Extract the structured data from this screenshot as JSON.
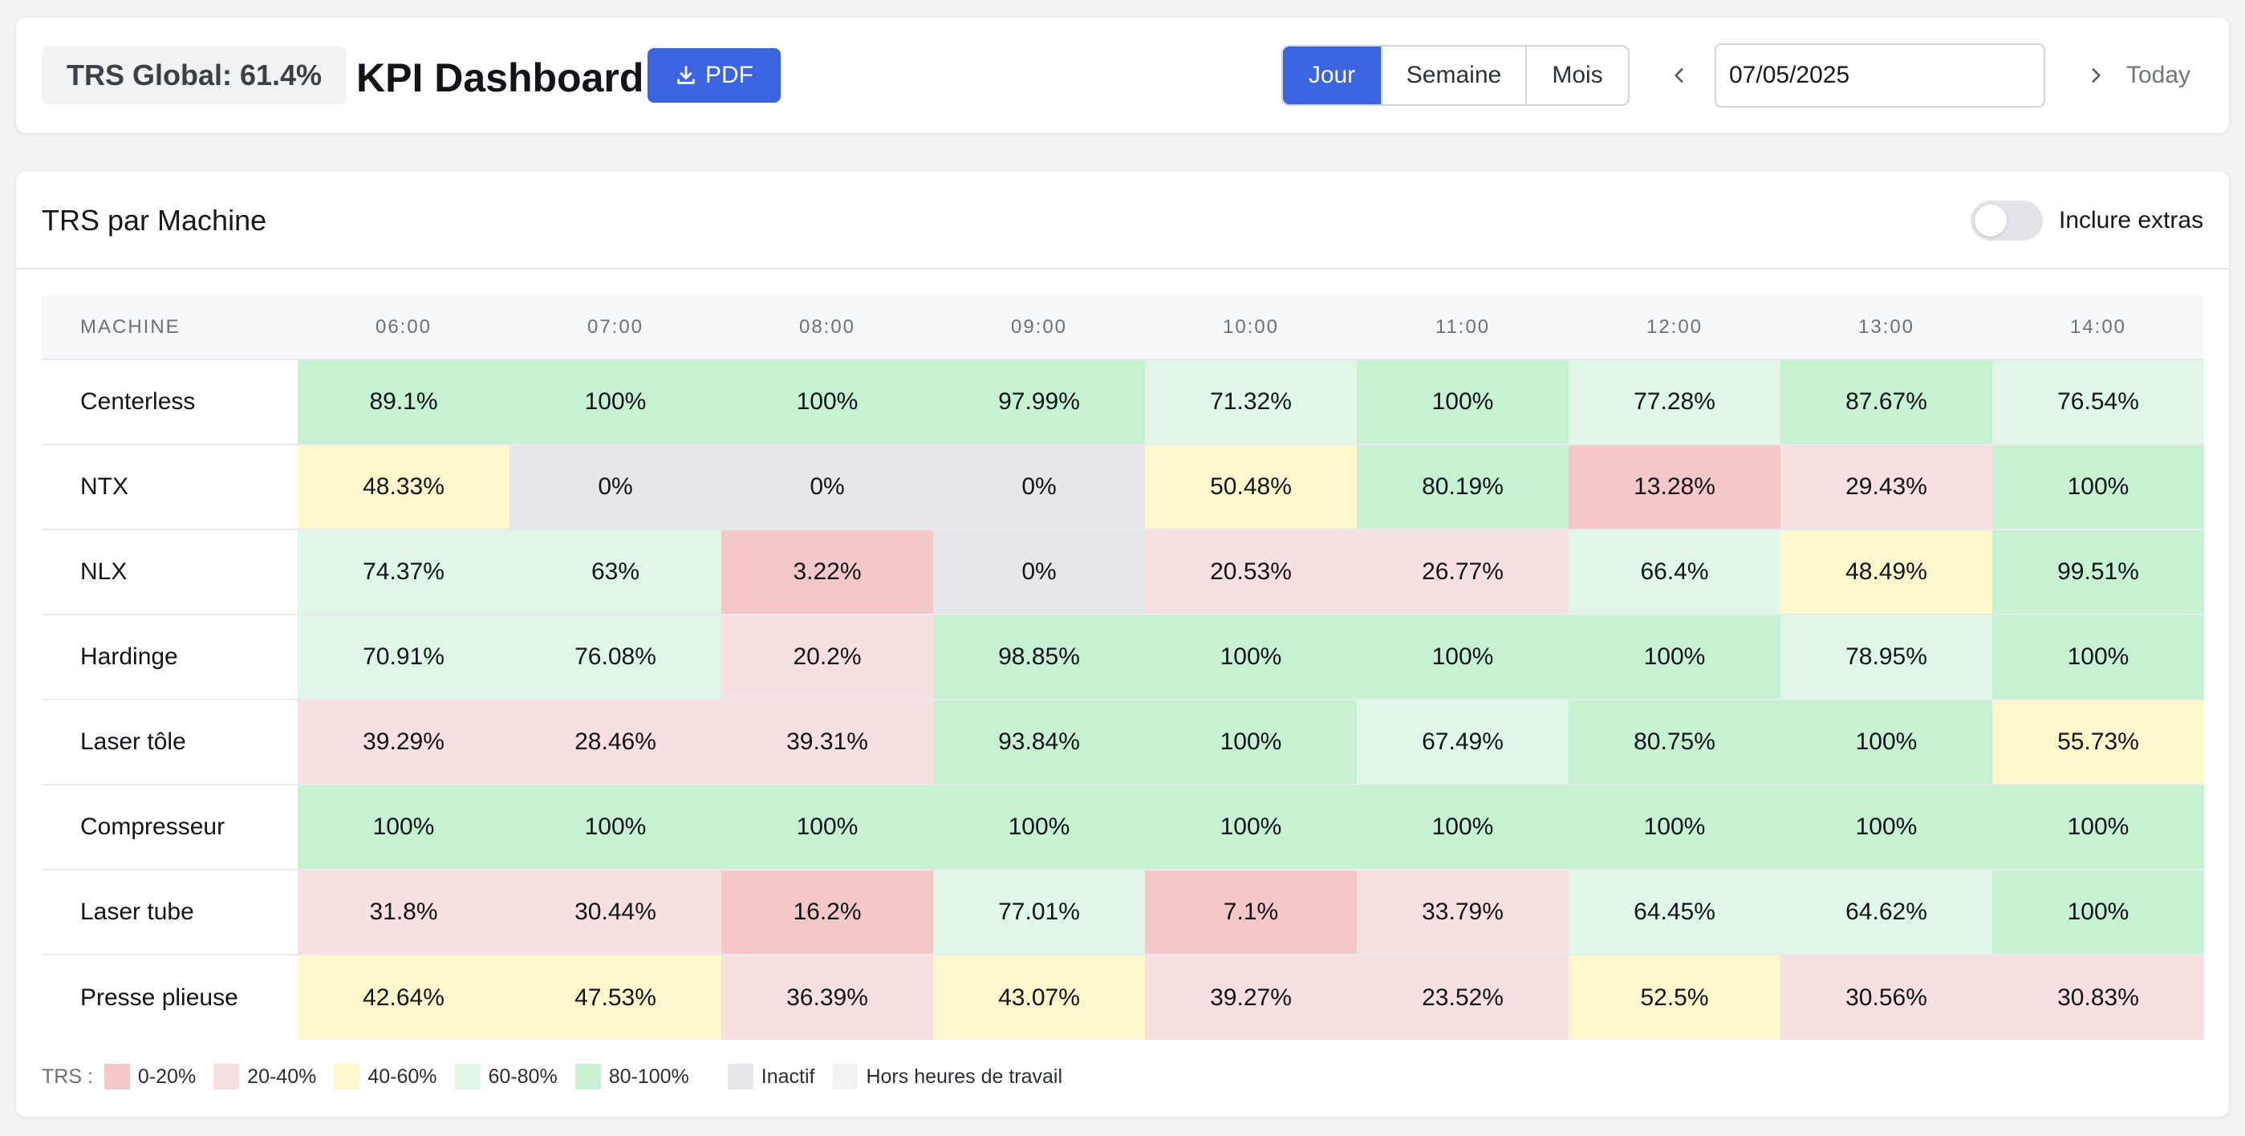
{
  "header": {
    "trs_global": "TRS Global: 61.4%",
    "title": "KPI Dashboard",
    "pdf_label": "PDF",
    "periods": [
      {
        "label": "Jour",
        "active": true
      },
      {
        "label": "Semaine",
        "active": false
      },
      {
        "label": "Mois",
        "active": false
      }
    ],
    "date_value": "07/05/2025",
    "today_label": "Today"
  },
  "panel": {
    "title": "TRS par Machine",
    "toggle_label": "Inclure extras",
    "toggle_on": false
  },
  "grid": {
    "machine_header": "MACHINE",
    "hours": [
      "06:00",
      "07:00",
      "08:00",
      "09:00",
      "10:00",
      "11:00",
      "12:00",
      "13:00",
      "14:00"
    ],
    "rows": [
      {
        "machine": "Centerless",
        "cells": [
          {
            "text": "89.1%",
            "band": "80-100"
          },
          {
            "text": "100%",
            "band": "80-100"
          },
          {
            "text": "100%",
            "band": "80-100"
          },
          {
            "text": "97.99%",
            "band": "80-100"
          },
          {
            "text": "71.32%",
            "band": "60-80"
          },
          {
            "text": "100%",
            "band": "80-100"
          },
          {
            "text": "77.28%",
            "band": "60-80"
          },
          {
            "text": "87.67%",
            "band": "80-100"
          },
          {
            "text": "76.54%",
            "band": "60-80"
          }
        ]
      },
      {
        "machine": "NTX",
        "cells": [
          {
            "text": "48.33%",
            "band": "40-60"
          },
          {
            "text": "0%",
            "band": "inactive"
          },
          {
            "text": "0%",
            "band": "inactive"
          },
          {
            "text": "0%",
            "band": "inactive"
          },
          {
            "text": "50.48%",
            "band": "40-60"
          },
          {
            "text": "80.19%",
            "band": "80-100"
          },
          {
            "text": "13.28%",
            "band": "0-20"
          },
          {
            "text": "29.43%",
            "band": "20-40"
          },
          {
            "text": "100%",
            "band": "80-100"
          }
        ]
      },
      {
        "machine": "NLX",
        "cells": [
          {
            "text": "74.37%",
            "band": "60-80"
          },
          {
            "text": "63%",
            "band": "60-80"
          },
          {
            "text": "3.22%",
            "band": "0-20"
          },
          {
            "text": "0%",
            "band": "inactive"
          },
          {
            "text": "20.53%",
            "band": "20-40"
          },
          {
            "text": "26.77%",
            "band": "20-40"
          },
          {
            "text": "66.4%",
            "band": "60-80"
          },
          {
            "text": "48.49%",
            "band": "40-60"
          },
          {
            "text": "99.51%",
            "band": "80-100"
          }
        ]
      },
      {
        "machine": "Hardinge",
        "cells": [
          {
            "text": "70.91%",
            "band": "60-80"
          },
          {
            "text": "76.08%",
            "band": "60-80"
          },
          {
            "text": "20.2%",
            "band": "20-40"
          },
          {
            "text": "98.85%",
            "band": "80-100"
          },
          {
            "text": "100%",
            "band": "80-100"
          },
          {
            "text": "100%",
            "band": "80-100"
          },
          {
            "text": "100%",
            "band": "80-100"
          },
          {
            "text": "78.95%",
            "band": "60-80"
          },
          {
            "text": "100%",
            "band": "80-100"
          }
        ]
      },
      {
        "machine": "Laser tôle",
        "cells": [
          {
            "text": "39.29%",
            "band": "20-40"
          },
          {
            "text": "28.46%",
            "band": "20-40"
          },
          {
            "text": "39.31%",
            "band": "20-40"
          },
          {
            "text": "93.84%",
            "band": "80-100"
          },
          {
            "text": "100%",
            "band": "80-100"
          },
          {
            "text": "67.49%",
            "band": "60-80"
          },
          {
            "text": "80.75%",
            "band": "80-100"
          },
          {
            "text": "100%",
            "band": "80-100"
          },
          {
            "text": "55.73%",
            "band": "40-60"
          }
        ]
      },
      {
        "machine": "Compresseur",
        "cells": [
          {
            "text": "100%",
            "band": "80-100"
          },
          {
            "text": "100%",
            "band": "80-100"
          },
          {
            "text": "100%",
            "band": "80-100"
          },
          {
            "text": "100%",
            "band": "80-100"
          },
          {
            "text": "100%",
            "band": "80-100"
          },
          {
            "text": "100%",
            "band": "80-100"
          },
          {
            "text": "100%",
            "band": "80-100"
          },
          {
            "text": "100%",
            "band": "80-100"
          },
          {
            "text": "100%",
            "band": "80-100"
          }
        ]
      },
      {
        "machine": "Laser tube",
        "cells": [
          {
            "text": "31.8%",
            "band": "20-40"
          },
          {
            "text": "30.44%",
            "band": "20-40"
          },
          {
            "text": "16.2%",
            "band": "0-20"
          },
          {
            "text": "77.01%",
            "band": "60-80"
          },
          {
            "text": "7.1%",
            "band": "0-20"
          },
          {
            "text": "33.79%",
            "band": "20-40"
          },
          {
            "text": "64.45%",
            "band": "60-80"
          },
          {
            "text": "64.62%",
            "band": "60-80"
          },
          {
            "text": "100%",
            "band": "80-100"
          }
        ]
      },
      {
        "machine": "Presse plieuse",
        "cells": [
          {
            "text": "42.64%",
            "band": "40-60"
          },
          {
            "text": "47.53%",
            "band": "40-60"
          },
          {
            "text": "36.39%",
            "band": "20-40"
          },
          {
            "text": "43.07%",
            "band": "40-60"
          },
          {
            "text": "39.27%",
            "band": "20-40"
          },
          {
            "text": "23.52%",
            "band": "20-40"
          },
          {
            "text": "52.5%",
            "band": "40-60"
          },
          {
            "text": "30.56%",
            "band": "20-40"
          },
          {
            "text": "30.83%",
            "band": "20-40"
          }
        ]
      }
    ]
  },
  "legend": {
    "title": "TRS :",
    "items": [
      {
        "key": "0-20",
        "label": "0-20%",
        "color": "#f4c8c8"
      },
      {
        "key": "20-40",
        "label": "20-40%",
        "color": "#f9e0e0"
      },
      {
        "key": "40-60",
        "label": "40-60%",
        "color": "#fdf8cc"
      },
      {
        "key": "60-80",
        "label": "60-80%",
        "color": "#e0f7e8"
      },
      {
        "key": "80-100",
        "label": "80-100%",
        "color": "#c6f1d3"
      },
      {
        "key": "inactive",
        "label": "Inactif",
        "color": "#e6e7ea"
      },
      {
        "key": "off-hours",
        "label": "Hors heures de travail",
        "color": "#f3f3f4"
      }
    ]
  },
  "colors": {
    "accent": "#3a64e0"
  }
}
